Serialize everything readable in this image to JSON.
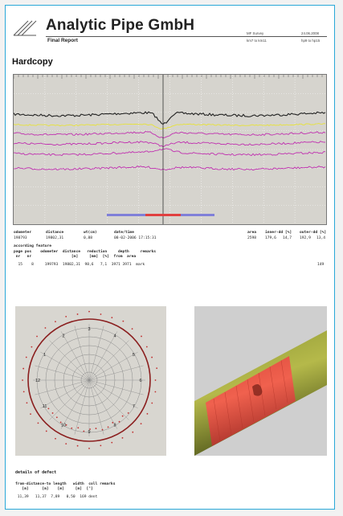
{
  "header": {
    "company": "Analytic Pipe GmbH",
    "subtitle": "Final Report",
    "survey_label": "MF Survey",
    "date": "24.06.2008",
    "line_ref": "km7 to km11",
    "page_ref": "hp9 to hp15"
  },
  "section_title": "Hardcopy",
  "measurement": {
    "headers": [
      "odometer",
      "distance",
      "wt(cm)",
      "date/time",
      "area",
      "inner-dd [%]",
      "outer-dd [%]"
    ],
    "values": [
      "198793",
      "19802,31",
      "0,88",
      "08-02-2006 17:15:31",
      "2598",
      "179,6",
      "14,7",
      "192,9",
      "13,4"
    ]
  },
  "feature_table": {
    "title": "according feature",
    "headers_row1": "page pos    odometer  distance   reduction     depth     remarks",
    "headers_row2": " nr   nr                  [m]     [mm]  [%]  from  area",
    "row": "  15    8     199793  19802,31  98,6   7,1  3971 3971  mark",
    "row_end": "149"
  },
  "polar_labels": [
    "2",
    "3",
    "4",
    "5",
    "6",
    "7",
    "8",
    "9",
    "10",
    "11",
    "12",
    "1"
  ],
  "defect": {
    "title": "details of defect",
    "headers_row1": "from-distance-to length   width  coll remarks",
    "headers_row2": "   [m]      [m]    [m]     [m]  [°]",
    "row": " 11,39   11,37  7,89   0,50  169 dent"
  },
  "colors": {
    "border": "#2aa8d8",
    "black_trace": "#222222",
    "yellow_trace": "#e7e23a",
    "magenta_trace": "#c030b0",
    "red_marker": "#e04040",
    "blue_bar": "#8080d8",
    "pipe_green": "#6f7a2a",
    "defect_red": "#e0483c"
  }
}
